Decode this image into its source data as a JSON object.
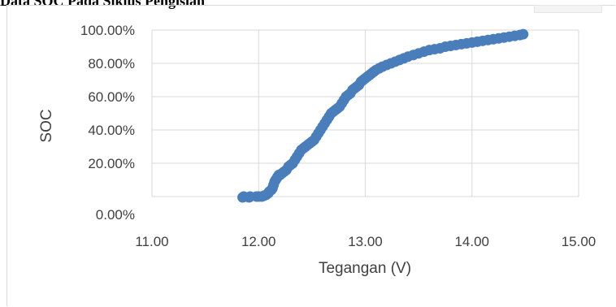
{
  "document": {
    "heading_fragment": "Data SOC Pada Siklus Pengisian"
  },
  "chart_data": {
    "type": "scatter",
    "title": "",
    "xlabel": "Tegangan (V)",
    "ylabel": "SOC",
    "xlim": [
      11,
      15
    ],
    "ylim": [
      0,
      1
    ],
    "x_ticks": [
      "11.00",
      "12.00",
      "13.00",
      "14.00",
      "15.00"
    ],
    "y_ticks": [
      "0.00%",
      "20.00%",
      "40.00%",
      "60.00%",
      "80.00%",
      "100.00%"
    ],
    "grid": true,
    "legend": "none",
    "marker_color": "#4a7ebb",
    "series": [
      {
        "x": [
          11.85,
          11.86,
          11.91,
          11.92,
          11.98,
          12.0,
          12.03,
          12.05,
          12.07,
          12.09,
          12.1,
          12.12,
          12.13,
          12.14,
          12.15,
          12.16,
          12.17,
          12.18,
          12.19,
          12.2,
          12.22,
          12.24,
          12.26,
          12.28,
          12.3,
          12.32,
          12.34,
          12.36,
          12.38,
          12.4,
          12.42,
          12.44,
          12.46,
          12.48,
          12.5,
          12.52,
          12.54,
          12.56,
          12.58,
          12.6,
          12.62,
          12.64,
          12.66,
          12.68,
          12.7,
          12.72,
          12.74,
          12.76,
          12.78,
          12.8,
          12.82,
          12.84,
          12.86,
          12.88,
          12.9,
          12.92,
          12.94,
          12.96,
          12.98,
          13.0,
          13.02,
          13.04,
          13.06,
          13.08,
          13.1,
          13.13,
          13.16,
          13.2,
          13.24,
          13.28,
          13.32,
          13.36,
          13.4,
          13.45,
          13.5,
          13.55,
          13.6,
          13.65,
          13.7,
          13.75,
          13.8,
          13.85,
          13.9,
          13.95,
          14.0,
          14.05,
          14.1,
          14.15,
          14.2,
          14.25,
          14.3,
          14.35,
          14.4,
          14.45,
          14.48
        ],
        "y": [
          -0.005,
          0.0,
          -0.005,
          0.0,
          0.0,
          0.0,
          0.0,
          0.005,
          0.01,
          0.02,
          0.03,
          0.04,
          0.05,
          0.07,
          0.09,
          0.1,
          0.11,
          0.12,
          0.13,
          0.13,
          0.14,
          0.15,
          0.16,
          0.18,
          0.19,
          0.2,
          0.22,
          0.24,
          0.26,
          0.28,
          0.29,
          0.3,
          0.31,
          0.32,
          0.33,
          0.34,
          0.36,
          0.38,
          0.4,
          0.42,
          0.44,
          0.46,
          0.48,
          0.5,
          0.51,
          0.52,
          0.53,
          0.54,
          0.56,
          0.58,
          0.6,
          0.61,
          0.62,
          0.64,
          0.65,
          0.66,
          0.67,
          0.69,
          0.7,
          0.71,
          0.72,
          0.73,
          0.74,
          0.75,
          0.76,
          0.77,
          0.78,
          0.79,
          0.8,
          0.81,
          0.82,
          0.83,
          0.84,
          0.85,
          0.86,
          0.87,
          0.88,
          0.885,
          0.89,
          0.9,
          0.905,
          0.91,
          0.915,
          0.92,
          0.925,
          0.93,
          0.935,
          0.94,
          0.945,
          0.95,
          0.955,
          0.96,
          0.965,
          0.97,
          0.975
        ]
      }
    ]
  }
}
